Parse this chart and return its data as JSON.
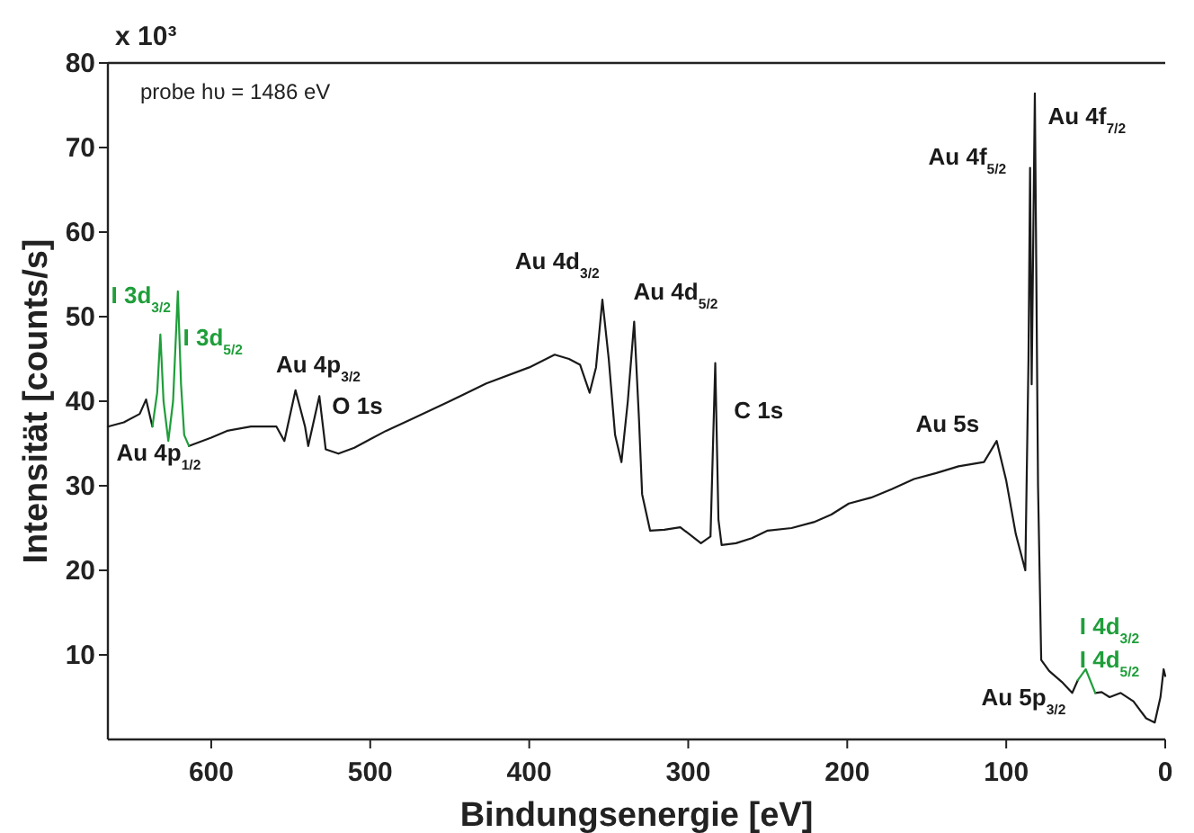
{
  "chart_data": {
    "type": "line",
    "xlabel": "Bindungsenergie [eV]",
    "ylabel": "Intensität [counts/s]",
    "xlim": [
      665,
      0
    ],
    "xticks": [
      600,
      500,
      400,
      300,
      200,
      100,
      0
    ],
    "ylim": [
      0,
      80
    ],
    "yticks": [
      10,
      20,
      30,
      40,
      50,
      60,
      70,
      80
    ],
    "grid": false,
    "marker": "none",
    "line_style": "solid",
    "series": [
      {
        "color": "#1a1a1a",
        "x": [
          665,
          655,
          645,
          641,
          637,
          null,
          614,
          600,
          590,
          575,
          559,
          554,
          547,
          541,
          539,
          532,
          528,
          520,
          510,
          500,
          490,
          475,
          450,
          427,
          400,
          384,
          375,
          368,
          362,
          358,
          354,
          350,
          346,
          342,
          338,
          334,
          331,
          329,
          324,
          315,
          305,
          292,
          286,
          283,
          281,
          279,
          270,
          260,
          250,
          235,
          221,
          210,
          199,
          185,
          172,
          158,
          144,
          130,
          114,
          106,
          100,
          94,
          88,
          86,
          85,
          84,
          82,
          80,
          78,
          73,
          65,
          58.5,
          55,
          null,
          44,
          40,
          35,
          28,
          20,
          12,
          6.6,
          3,
          1,
          0
        ],
        "values": [
          37,
          37.5,
          38.5,
          40.2,
          37,
          null,
          34.7,
          35.7,
          36.5,
          37,
          37,
          35.3,
          41.3,
          37,
          34.7,
          40.6,
          34.3,
          33.8,
          34.5,
          35.5,
          36.5,
          37.8,
          40,
          42.1,
          44,
          45.5,
          45,
          44.3,
          41,
          44,
          52,
          45,
          36,
          32.8,
          40,
          49.4,
          38,
          29,
          24.7,
          24.8,
          25.1,
          23.2,
          24,
          44.5,
          26,
          23,
          23.2,
          23.8,
          24.7,
          25,
          25.7,
          26.6,
          27.9,
          28.6,
          29.6,
          30.8,
          31.5,
          32.3,
          32.8,
          35.3,
          30.6,
          24.3,
          20,
          45,
          67.6,
          42,
          76.4,
          30,
          9.4,
          8.1,
          6.8,
          5.5,
          7,
          null,
          5.5,
          5.6,
          5,
          5.5,
          4.5,
          2.5,
          2,
          5,
          8.3,
          7.5
        ]
      },
      {
        "color": "#1f9e3a",
        "x": [
          637,
          634,
          632,
          630,
          627,
          624,
          621,
          619,
          617,
          614,
          null,
          55,
          50,
          44
        ],
        "values": [
          37,
          41,
          47.9,
          40,
          35.3,
          40,
          53,
          42,
          36,
          34.7,
          null,
          7,
          8.3,
          5.5
        ]
      }
    ],
    "annotations": [
      "x 10³",
      "probe hυ = 1486 eV",
      "I 3d$_{3/2}$",
      "I 3d$_{5/2}$",
      "Au 4p$_{1/2}$",
      "Au 4p$_{3/2}$",
      "O 1s",
      "Au 4d$_{3/2}$",
      "Au 4d$_{5/2}$",
      "C 1s",
      "Au 5s",
      "Au 4f$_{5/2}$",
      "Au 4f$_{7/2}$",
      "Au 5p$_{3/2}$",
      "I 4d$_{3/2}$",
      "I 4d$_{5/2}$"
    ]
  }
}
